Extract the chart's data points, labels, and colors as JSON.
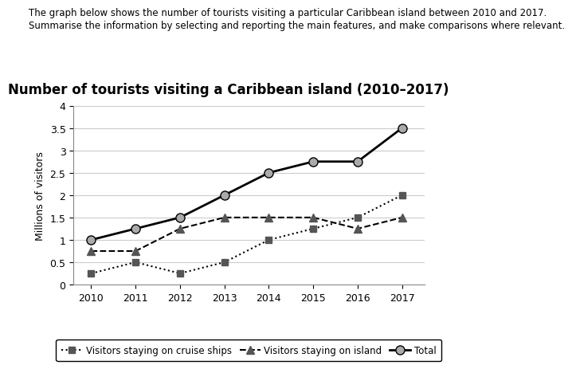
{
  "title": "Number of tourists visiting a Caribbean island (2010–2017)",
  "header_line1": "The graph below shows the number of tourists visiting a particular Caribbean island between 2010 and 2017.",
  "header_line2": "Summarise the information by selecting and reporting the main features, and make comparisons where relevant.",
  "ylabel": "Millions of visitors",
  "years": [
    2010,
    2011,
    2012,
    2013,
    2014,
    2015,
    2016,
    2017
  ],
  "cruise_ships": [
    0.25,
    0.5,
    0.25,
    0.5,
    1.0,
    1.25,
    1.5,
    2.0
  ],
  "island": [
    0.75,
    0.75,
    1.25,
    1.5,
    1.5,
    1.5,
    1.25,
    1.5
  ],
  "total": [
    1.0,
    1.25,
    1.5,
    2.0,
    2.5,
    2.75,
    2.75,
    3.5
  ],
  "ylim": [
    0,
    4
  ],
  "yticks": [
    0,
    0.5,
    1.0,
    1.5,
    2.0,
    2.5,
    3.0,
    3.5,
    4.0
  ],
  "grid_color": "#cccccc",
  "title_fontsize": 12,
  "header_fontsize": 8.5,
  "tick_fontsize": 9,
  "ylabel_fontsize": 9
}
